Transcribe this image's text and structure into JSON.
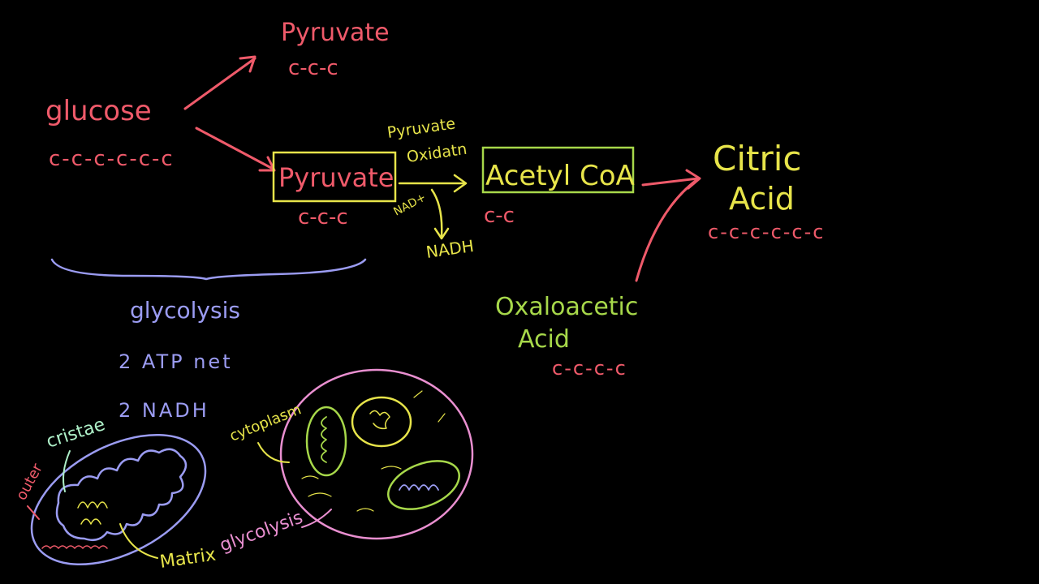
{
  "colors": {
    "background": "#000000",
    "red": "#ef5a6a",
    "salmon": "#f27a7a",
    "yellow": "#e7e44a",
    "green": "#a7d84a",
    "lavender": "#9b9cf2",
    "mint": "#aef0c8",
    "pink": "#e98fd0"
  },
  "top": {
    "pyruvate_label": "Pyruvate",
    "pyruvate_carbons": "c-c-c"
  },
  "glucose": {
    "label": "glucose",
    "carbons": "c-c-c-c-c-c"
  },
  "pathway": {
    "pyruvate_label": "Pyruvate",
    "pyruvate_carbons": "c-c-c",
    "oxidation_line1": "Pyruvate",
    "oxidation_line2": "Oxidatn",
    "nad": "NAD+",
    "nadh": "NADH",
    "acetyl_label": "Acetyl CoA",
    "acetyl_carbons": "c-c"
  },
  "citric": {
    "line1": "Citric",
    "line2": "Acid",
    "carbons": "c-c-c-c-c-c"
  },
  "oxaloacetic": {
    "line1": "Oxaloacetic",
    "line2": "Acid",
    "carbons": "c-c-c-c"
  },
  "glycolysis": {
    "label": "glycolysis",
    "atp": "2 ATP net",
    "nadh": "2 NADH"
  },
  "mitochondrion": {
    "cristae": "cristae",
    "outer": "outer",
    "matrix": "Matrix",
    "glycolysis_label": "glycolysis",
    "cytoplasm": "cytoplasm"
  }
}
